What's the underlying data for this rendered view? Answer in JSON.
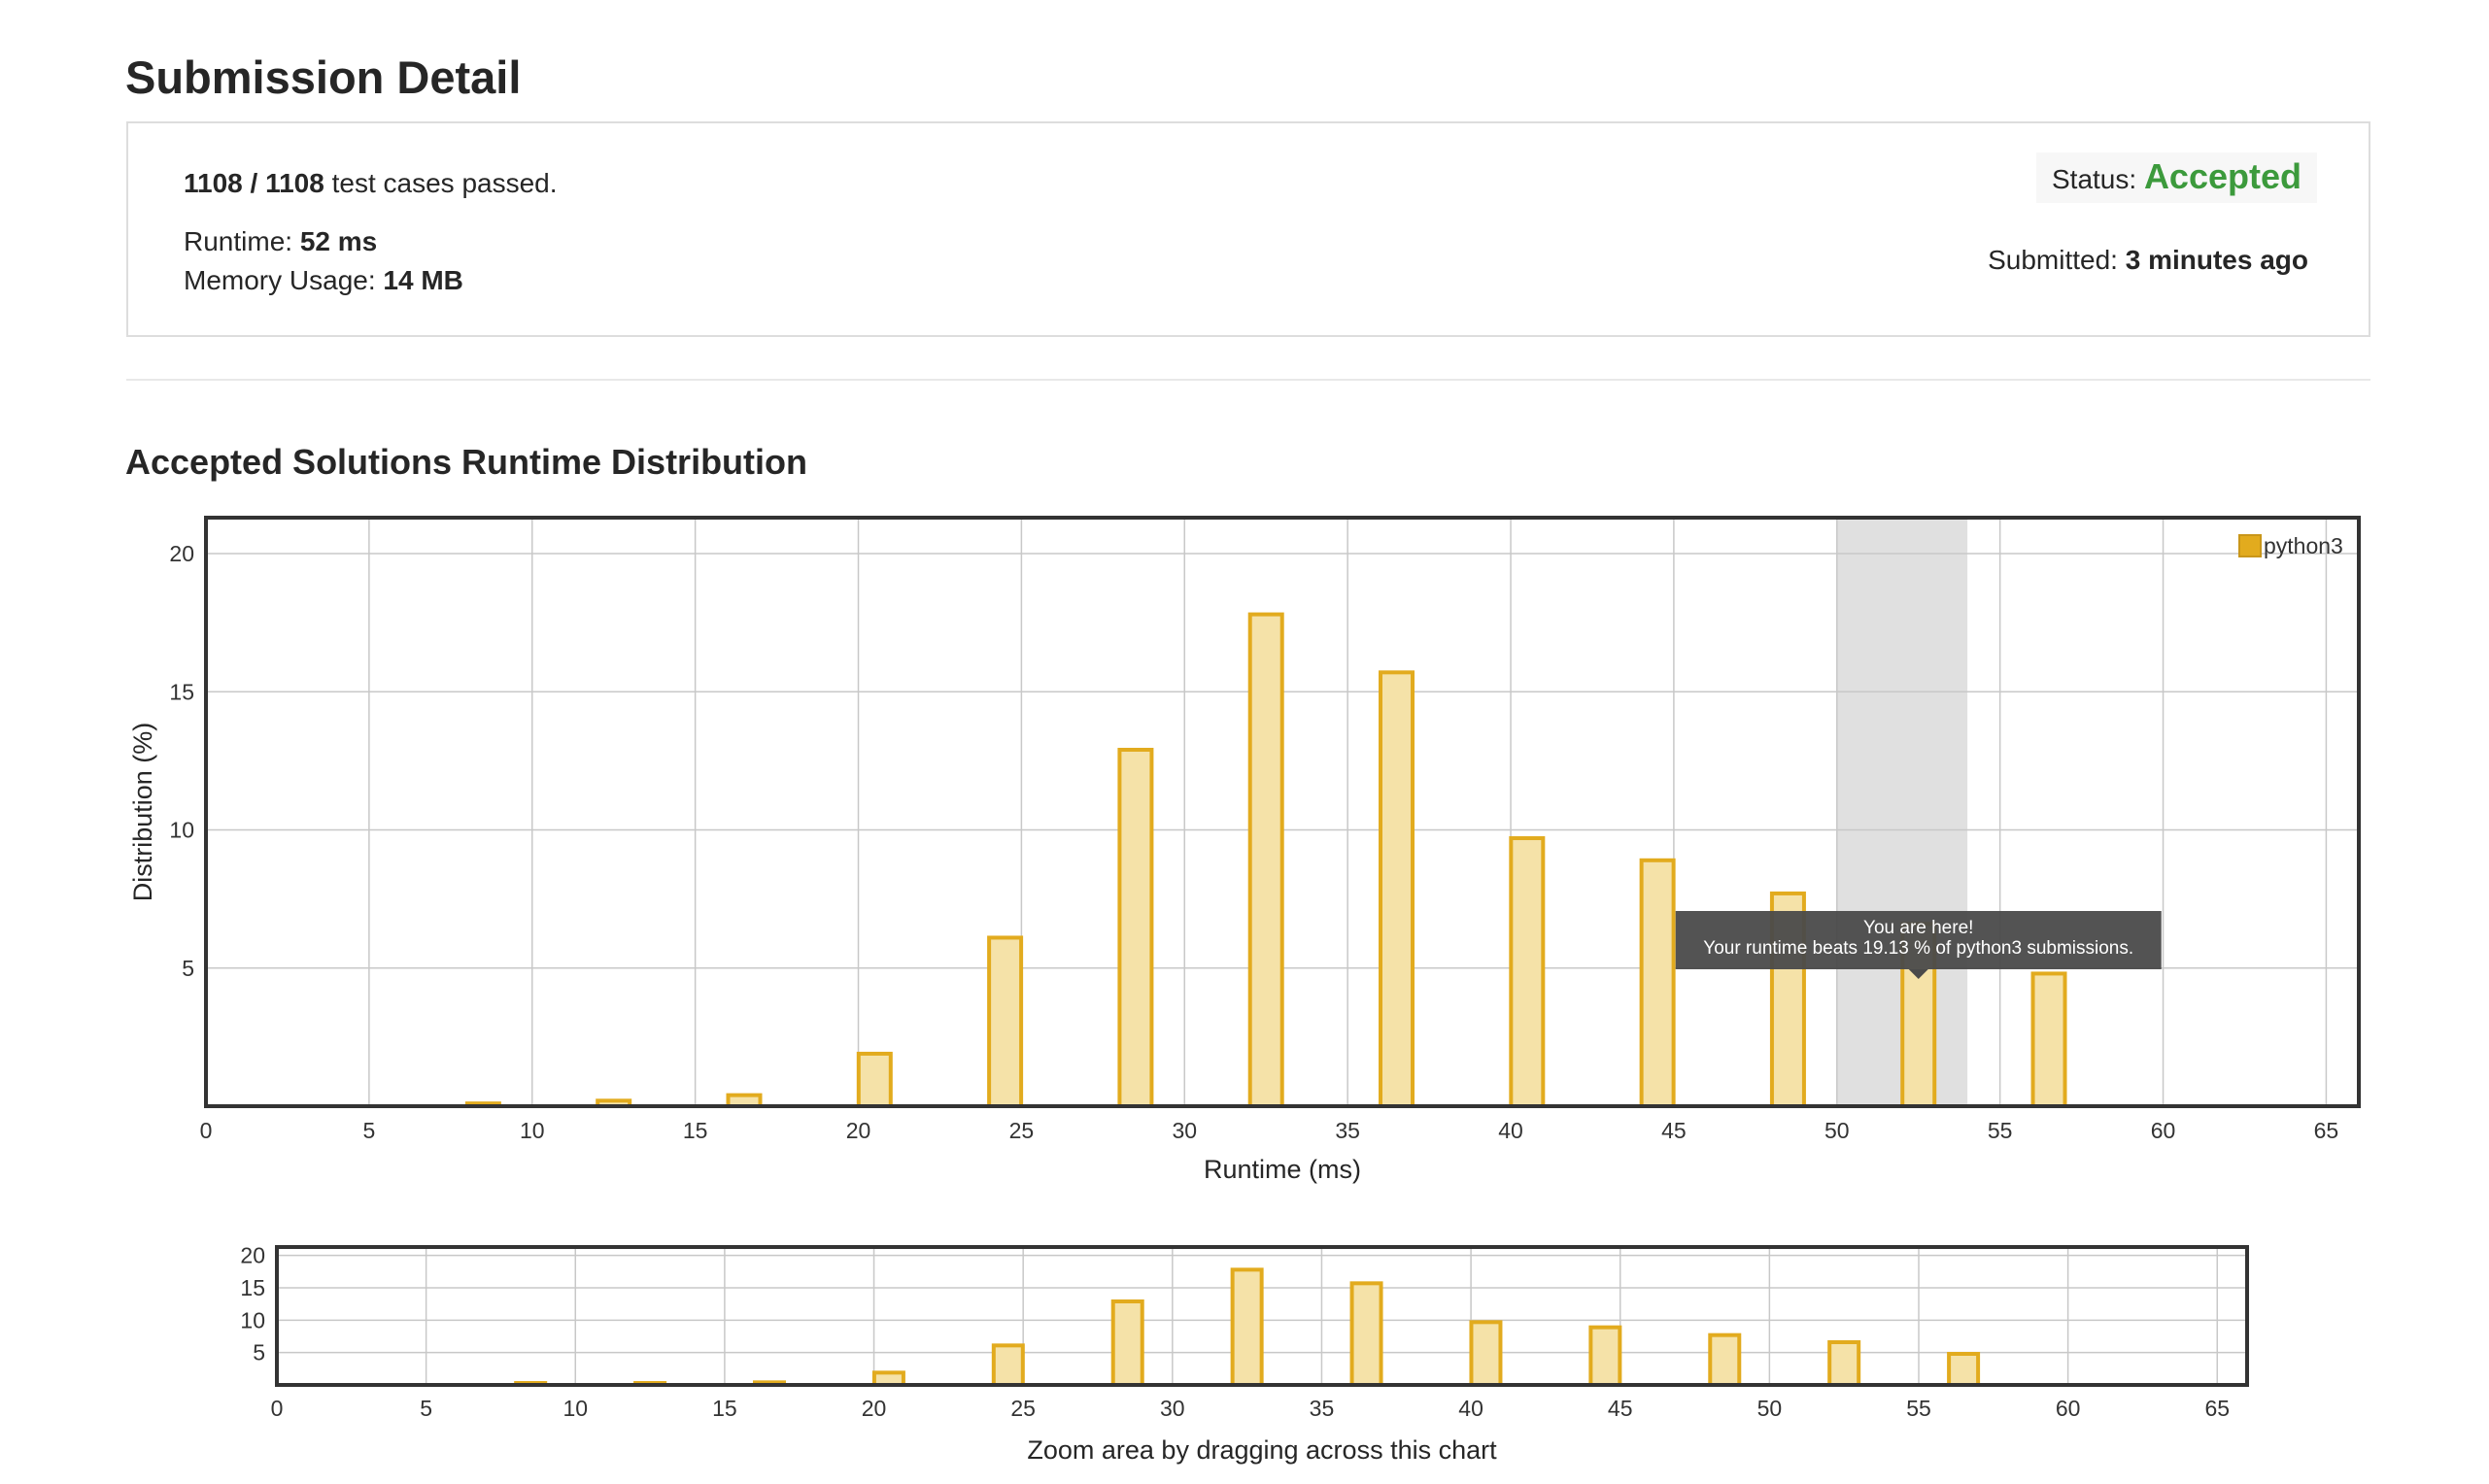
{
  "page_title": "Submission Detail",
  "summary": {
    "passed_count": "1108 / 1108",
    "passed_suffix": " test cases passed.",
    "runtime_label": "Runtime: ",
    "runtime_value": "52 ms",
    "memory_label": "Memory Usage: ",
    "memory_value": "14 MB",
    "status_label": "Status: ",
    "status_value": "Accepted",
    "submitted_label": "Submitted: ",
    "submitted_value": "3 minutes ago"
  },
  "colors": {
    "accent_green": "#3c9a3c",
    "bar_fill": "#f5e2a8",
    "bar_stroke": "#e2ab1e",
    "highlight_band": "#e0e0e0",
    "tooltip_bg": "#4a4a4a"
  },
  "chart_data": [
    {
      "type": "bar",
      "title": "Accepted Solutions Runtime Distribution",
      "xlabel": "Runtime (ms)",
      "ylabel": "Distribution (%)",
      "xlim": [
        0,
        66
      ],
      "ylim": [
        0,
        21.3
      ],
      "xticks": [
        "0",
        "5",
        "10",
        "15",
        "20",
        "25",
        "30",
        "35",
        "40",
        "45",
        "50",
        "55",
        "60",
        "65"
      ],
      "yticks": [
        "5",
        "10",
        "15",
        "20"
      ],
      "grid": true,
      "legend": "top-right",
      "series": [
        {
          "name": "python3",
          "x": [
            8.5,
            12.5,
            16.5,
            20.5,
            24.5,
            28.5,
            32.5,
            36.5,
            40.5,
            44.5,
            48.5,
            52.5,
            56.5
          ],
          "values": [
            0.1,
            0.2,
            0.4,
            1.9,
            6.1,
            12.9,
            17.8,
            15.7,
            9.7,
            8.9,
            7.7,
            6.6,
            4.8
          ]
        }
      ],
      "highlight_range": [
        50,
        54
      ],
      "tooltip": {
        "x": 52.5,
        "line1": "You are here!",
        "line2": "Your runtime beats 19.13 % of python3 submissions."
      }
    },
    {
      "type": "bar",
      "title": "",
      "xlabel": "Zoom area by dragging across this chart",
      "ylabel": "",
      "xlim": [
        0,
        66
      ],
      "ylim": [
        0,
        21.3
      ],
      "xticks": [
        "0",
        "5",
        "10",
        "15",
        "20",
        "25",
        "30",
        "35",
        "40",
        "45",
        "50",
        "55",
        "60",
        "65"
      ],
      "yticks": [
        "5",
        "10",
        "15",
        "20"
      ],
      "grid": true,
      "series": [
        {
          "name": "python3",
          "x": [
            8.5,
            12.5,
            16.5,
            20.5,
            24.5,
            28.5,
            32.5,
            36.5,
            40.5,
            44.5,
            48.5,
            52.5,
            56.5
          ],
          "values": [
            0.1,
            0.2,
            0.4,
            1.9,
            6.1,
            12.9,
            17.8,
            15.7,
            9.7,
            8.9,
            7.7,
            6.6,
            4.8
          ]
        }
      ]
    }
  ]
}
